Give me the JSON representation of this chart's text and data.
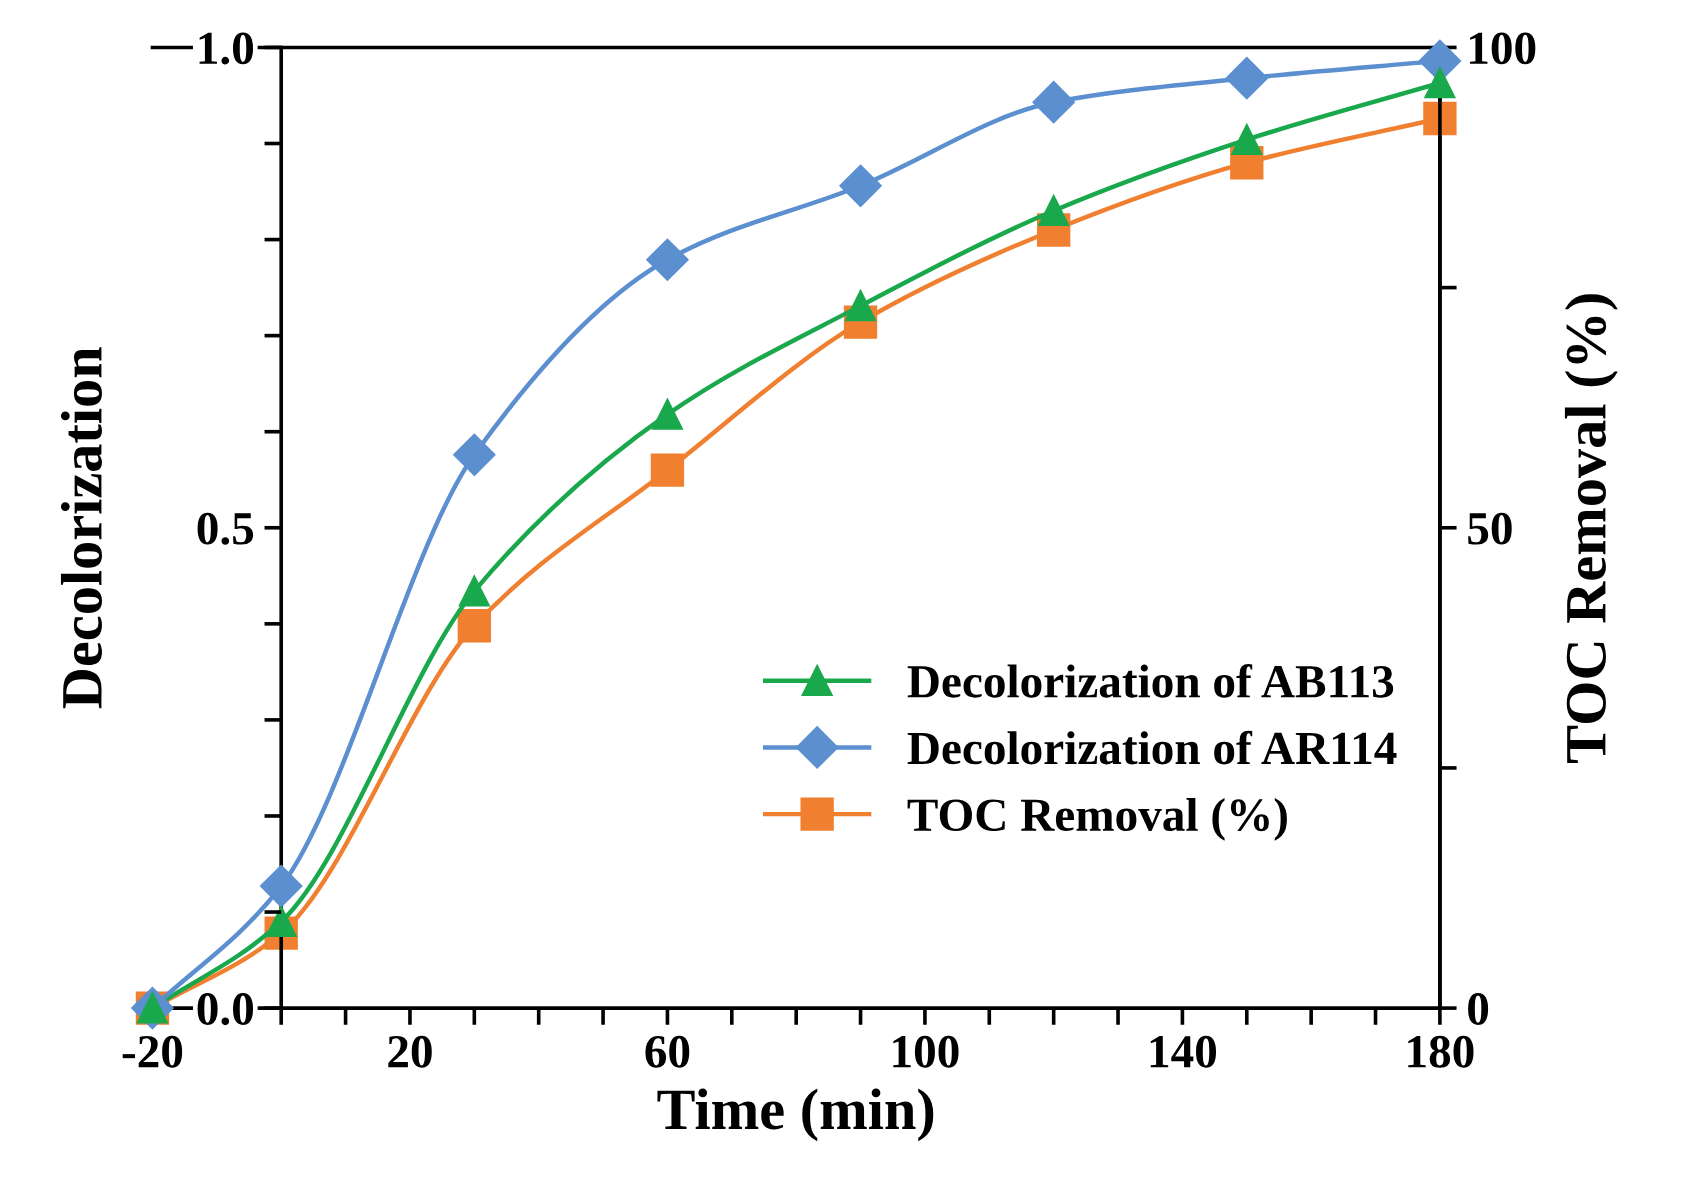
{
  "chart_data": {
    "type": "line",
    "xlabel": "Time (min)",
    "ylabel": "Decolorization",
    "y2label": "TOC Removal (%)",
    "x": [
      -20,
      0,
      30,
      60,
      90,
      120,
      150,
      180
    ],
    "series": [
      {
        "name": "Decolorization of AB113",
        "color": "#1aa84c",
        "marker": "triangle",
        "values": [
          0,
          0.09,
          0.434,
          0.618,
          0.731,
          0.83,
          0.904,
          0.963
        ]
      },
      {
        "name": "Decolorization of AR114",
        "color": "#5b8fd0",
        "marker": "diamond",
        "values": [
          0,
          0.127,
          0.576,
          0.779,
          0.856,
          0.943,
          0.968,
          0.986
        ]
      },
      {
        "name": "TOC Removal (%)",
        "color": "#f07f30",
        "marker": "square",
        "axis": "y2",
        "values": [
          0,
          7.8,
          39.8,
          56,
          71.4,
          81,
          88,
          92.6
        ]
      }
    ],
    "xlim": [
      -20,
      180
    ],
    "xticks": [
      -20,
      {
        "value": 0,
        "label": null
      },
      {
        "value": 10,
        "label": null
      },
      20,
      {
        "value": 30,
        "label": null
      },
      {
        "value": 40,
        "label": null
      },
      {
        "value": 50,
        "label": null
      },
      60,
      {
        "value": 70,
        "label": null
      },
      {
        "value": 80,
        "label": null
      },
      {
        "value": 90,
        "label": null
      },
      100,
      {
        "value": 110,
        "label": null
      },
      {
        "value": 120,
        "label": null
      },
      {
        "value": 130,
        "label": null
      },
      140,
      {
        "value": 150,
        "label": null
      },
      {
        "value": 160,
        "label": null
      },
      {
        "value": 170,
        "label": null
      },
      180
    ],
    "ylim": [
      0,
      1
    ],
    "yticks": [
      {
        "value": 0,
        "label": "0.0"
      },
      {
        "value": 0.1,
        "label": null
      },
      {
        "value": 0.2,
        "label": null
      },
      {
        "value": 0.3,
        "label": null
      },
      {
        "value": 0.4,
        "label": null
      },
      0.5,
      {
        "value": 0.6,
        "label": null
      },
      {
        "value": 0.7,
        "label": null
      },
      {
        "value": 0.8,
        "label": null
      },
      {
        "value": 0.9,
        "label": null
      },
      {
        "value": 1,
        "label": "1.0"
      }
    ],
    "y2lim": [
      0,
      100
    ],
    "y2ticks": [
      0,
      {
        "value": 25,
        "label": null
      },
      50,
      {
        "value": 75,
        "label": null
      },
      100
    ],
    "grid": false,
    "legend": "bottom right",
    "line_style": "solid"
  }
}
